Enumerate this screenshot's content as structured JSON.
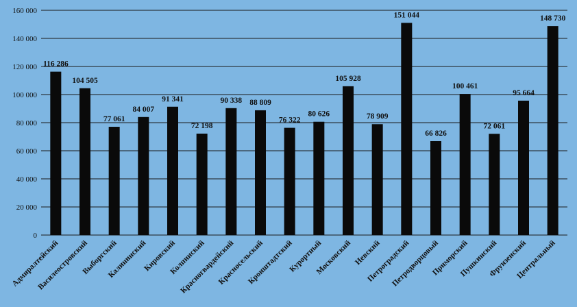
{
  "chart_data": {
    "type": "bar",
    "title": "",
    "xlabel": "",
    "ylabel": "",
    "ylim": [
      0,
      160000
    ],
    "yticks": [
      0,
      20000,
      40000,
      60000,
      80000,
      100000,
      120000,
      140000,
      160000
    ],
    "ytick_labels": [
      "0",
      "20 000",
      "40 000",
      "60 000",
      "80 000",
      "100 000",
      "120 000",
      "140 000",
      "160 000"
    ],
    "grid": true,
    "categories": [
      "Адмиралтейский",
      "Василеостровский",
      "Выборгский",
      "Калининский",
      "Кировский",
      "Колпинский",
      "Красногвардейский",
      "Красносельский",
      "Кронштадтский",
      "Курортный",
      "Московский",
      "Невский",
      "Петроградский",
      "Петродворцовый",
      "Приморский",
      "Пушкинский",
      "Фрунзенский",
      "Центральный"
    ],
    "values": [
      116286,
      104505,
      77061,
      84007,
      91341,
      72198,
      90338,
      88809,
      76322,
      80626,
      105928,
      78909,
      151044,
      66826,
      100461,
      72061,
      95664,
      148730
    ],
    "value_labels": [
      "116 286",
      "104 505",
      "77 061",
      "84 007",
      "91 341",
      "72 198",
      "90 338",
      "88 809",
      "76 322",
      "80 626",
      "105 928",
      "78 909",
      "151 044",
      "66 826",
      "100 461",
      "72 061",
      "95 664",
      "148 730"
    ],
    "colors": {
      "bar": "#0a0a0a",
      "gridline": "#1a1a1a",
      "background": "#7eb6e2"
    }
  }
}
